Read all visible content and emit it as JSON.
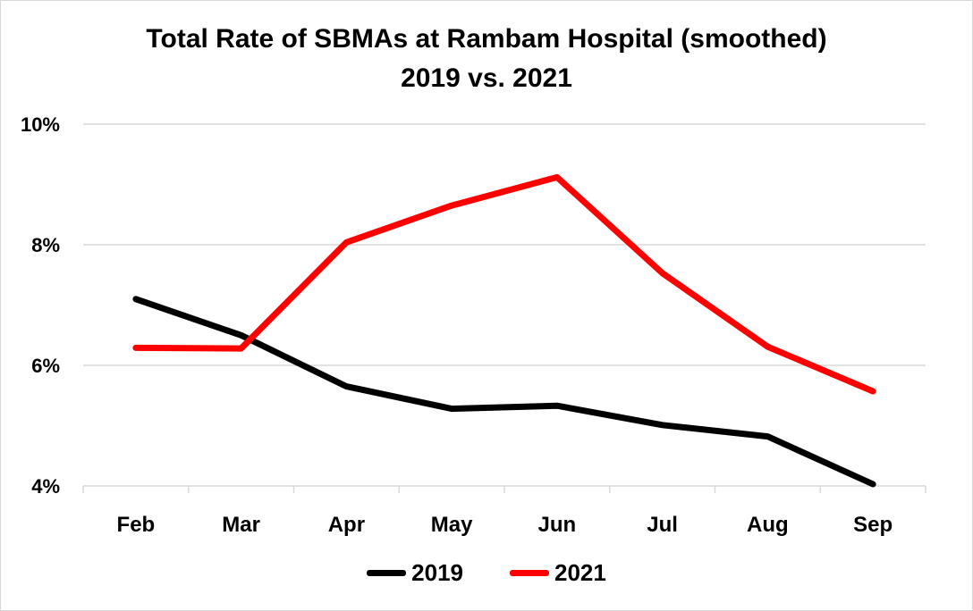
{
  "chart_data": {
    "type": "line",
    "title": "Total Rate of SBMAs at Rambam Hospital (smoothed)",
    "subtitle": "2019 vs. 2021",
    "xlabel": "",
    "ylabel": "",
    "categories": [
      "Feb",
      "Mar",
      "Apr",
      "May",
      "Jun",
      "Jul",
      "Aug",
      "Sep"
    ],
    "y_ticks": [
      "4%",
      "6%",
      "8%",
      "10%"
    ],
    "ylim": [
      4,
      10
    ],
    "grid": true,
    "legend_position": "bottom",
    "series": [
      {
        "name": "2019",
        "color": "#000000",
        "values": [
          7.1,
          6.5,
          5.65,
          5.28,
          5.33,
          5.01,
          4.82,
          4.03
        ]
      },
      {
        "name": "2021",
        "color": "#ff0000",
        "values": [
          6.29,
          6.28,
          8.04,
          8.65,
          9.12,
          7.53,
          6.31,
          5.57
        ]
      }
    ]
  }
}
